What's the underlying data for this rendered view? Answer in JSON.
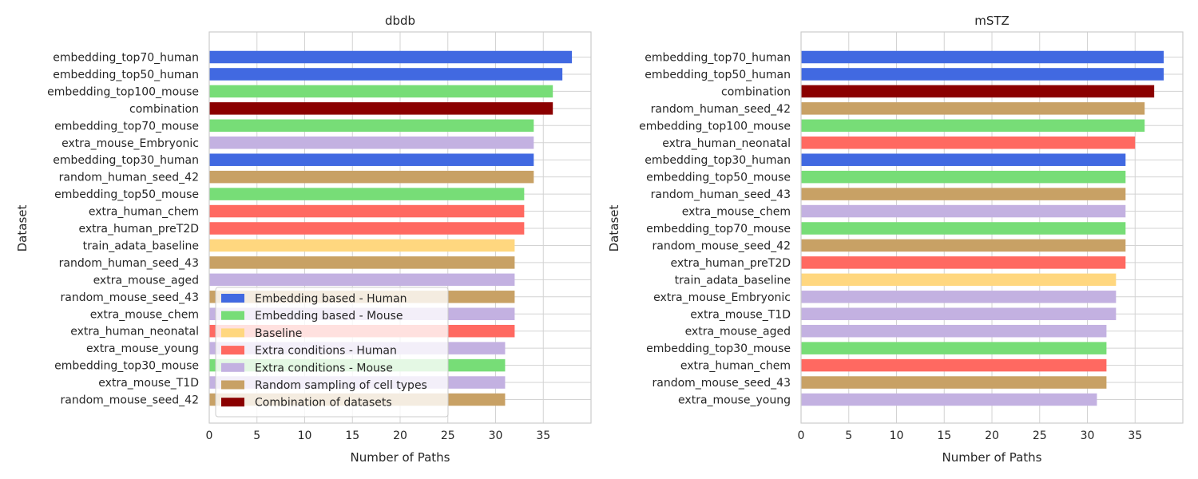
{
  "figure": {
    "legend": {
      "items": [
        {
          "label": "Embedding based - Human",
          "color": "#4169e1"
        },
        {
          "label": "Embedding based - Mouse",
          "color": "#77dd77"
        },
        {
          "label": "Baseline",
          "color": "#ffd77f"
        },
        {
          "label": "Extra conditions - Human",
          "color": "#ff6961"
        },
        {
          "label": "Extra conditions - Mouse",
          "color": "#c3b1e1"
        },
        {
          "label": "Random sampling of cell types",
          "color": "#c8a165"
        },
        {
          "label": "Combination of datasets",
          "color": "#8b0000"
        }
      ],
      "placement": "lower-center of left panel"
    }
  },
  "chart_data": [
    {
      "type": "bar",
      "orientation": "horizontal",
      "title": "dbdb",
      "xlabel": "Number of Paths",
      "ylabel": "Dataset",
      "xlim": [
        0,
        40
      ],
      "xticks": [
        "0",
        "5",
        "10",
        "15",
        "20",
        "25",
        "30",
        "35"
      ],
      "grid": true,
      "categories": [
        "embedding_top70_human",
        "embedding_top50_human",
        "embedding_top100_mouse",
        "combination",
        "embedding_top70_mouse",
        "extra_mouse_Embryonic",
        "embedding_top30_human",
        "random_human_seed_42",
        "embedding_top50_mouse",
        "extra_human_chem",
        "extra_human_preT2D",
        "train_adata_baseline",
        "random_human_seed_43",
        "extra_mouse_aged",
        "random_mouse_seed_43",
        "extra_mouse_chem",
        "extra_human_neonatal",
        "extra_mouse_young",
        "embedding_top30_mouse",
        "extra_mouse_T1D",
        "random_mouse_seed_42"
      ],
      "values": [
        38,
        37,
        36,
        36,
        34,
        34,
        34,
        34,
        33,
        33,
        33,
        32,
        32,
        32,
        32,
        32,
        32,
        31,
        31,
        31,
        31
      ],
      "groups": [
        "Embedding based - Human",
        "Embedding based - Human",
        "Embedding based - Mouse",
        "Combination of datasets",
        "Embedding based - Mouse",
        "Extra conditions - Mouse",
        "Embedding based - Human",
        "Random sampling of cell types",
        "Embedding based - Mouse",
        "Extra conditions - Human",
        "Extra conditions - Human",
        "Baseline",
        "Random sampling of cell types",
        "Extra conditions - Mouse",
        "Random sampling of cell types",
        "Extra conditions - Mouse",
        "Extra conditions - Human",
        "Extra conditions - Mouse",
        "Embedding based - Mouse",
        "Extra conditions - Mouse",
        "Random sampling of cell types"
      ]
    },
    {
      "type": "bar",
      "orientation": "horizontal",
      "title": "mSTZ",
      "xlabel": "Number of Paths",
      "ylabel": "Dataset",
      "xlim": [
        0,
        40
      ],
      "xticks": [
        "0",
        "5",
        "10",
        "15",
        "20",
        "25",
        "30",
        "35"
      ],
      "grid": true,
      "categories": [
        "embedding_top70_human",
        "embedding_top50_human",
        "combination",
        "random_human_seed_42",
        "embedding_top100_mouse",
        "extra_human_neonatal",
        "embedding_top30_human",
        "embedding_top50_mouse",
        "random_human_seed_43",
        "extra_mouse_chem",
        "embedding_top70_mouse",
        "random_mouse_seed_42",
        "extra_human_preT2D",
        "train_adata_baseline",
        "extra_mouse_Embryonic",
        "extra_mouse_T1D",
        "extra_mouse_aged",
        "embedding_top30_mouse",
        "extra_human_chem",
        "random_mouse_seed_43",
        "extra_mouse_young"
      ],
      "values": [
        38,
        38,
        37,
        36,
        36,
        35,
        34,
        34,
        34,
        34,
        34,
        34,
        34,
        33,
        33,
        33,
        32,
        32,
        32,
        32,
        31
      ],
      "groups": [
        "Embedding based - Human",
        "Embedding based - Human",
        "Combination of datasets",
        "Random sampling of cell types",
        "Embedding based - Mouse",
        "Extra conditions - Human",
        "Embedding based - Human",
        "Embedding based - Mouse",
        "Random sampling of cell types",
        "Extra conditions - Mouse",
        "Embedding based - Mouse",
        "Random sampling of cell types",
        "Extra conditions - Human",
        "Baseline",
        "Extra conditions - Mouse",
        "Extra conditions - Mouse",
        "Extra conditions - Mouse",
        "Embedding based - Mouse",
        "Extra conditions - Human",
        "Random sampling of cell types",
        "Extra conditions - Mouse"
      ]
    }
  ]
}
